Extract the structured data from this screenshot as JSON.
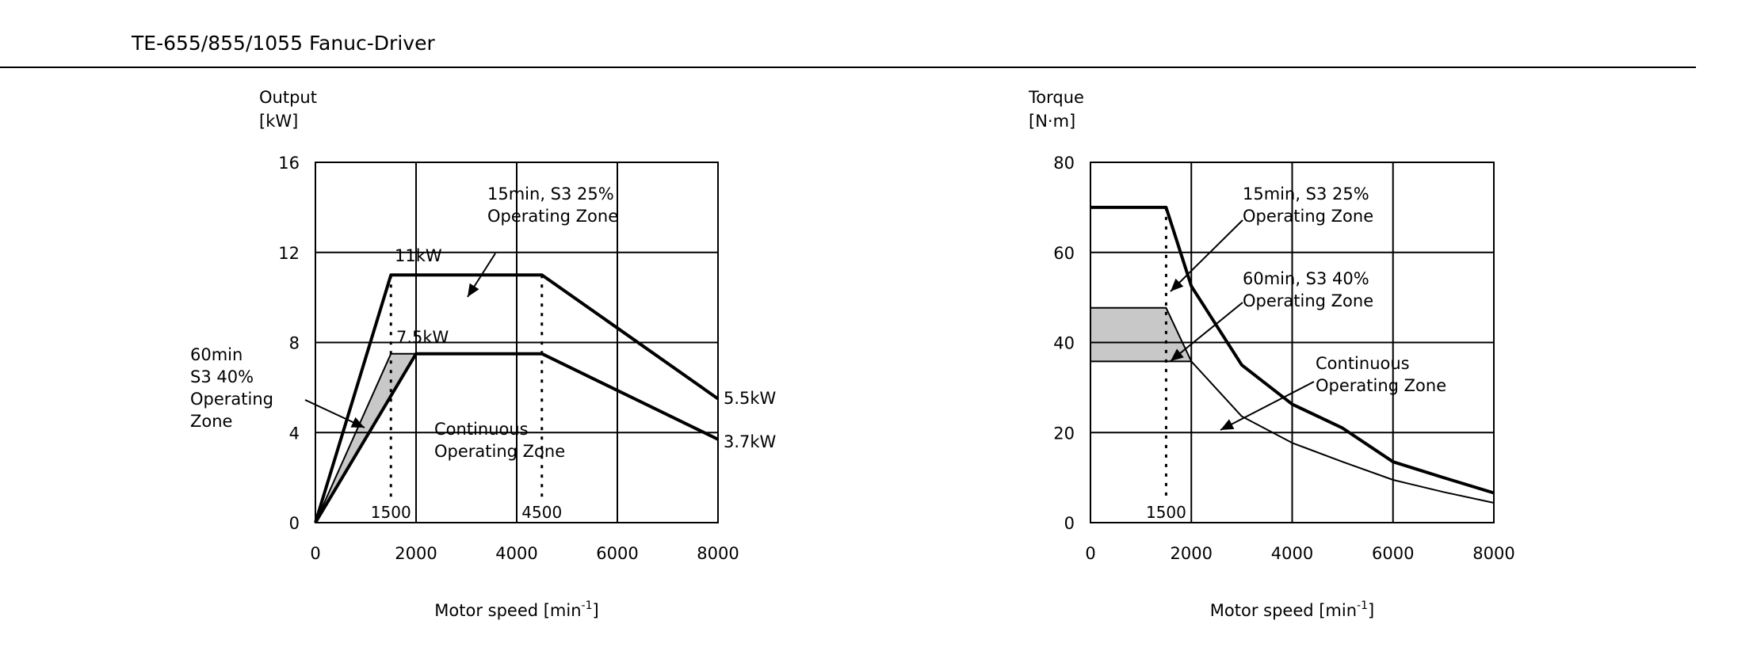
{
  "header": {
    "title": "TE-655/855/1055 Fanuc-Driver"
  },
  "colors": {
    "line": "#000000",
    "grid": "#000000",
    "shade": "#c8c8c8",
    "background": "#ffffff"
  },
  "chart_data": [
    {
      "type": "line",
      "ylabel_lines": [
        "Output",
        "[kW]"
      ],
      "xlabel": "Motor speed  [min",
      "xlabel_sup": "-1",
      "xlabel_close": "]",
      "xlim": [
        0,
        8000
      ],
      "ylim": [
        0,
        16
      ],
      "x_ticks": [
        0,
        2000,
        4000,
        6000,
        8000
      ],
      "x_tick_labels": [
        "0",
        "2000",
        "4000",
        "6000",
        "8000"
      ],
      "y_ticks": [
        0,
        4,
        8,
        12,
        16
      ],
      "y_tick_labels": [
        "0",
        "4",
        "8",
        "12",
        "16"
      ],
      "grid": true,
      "series": [
        {
          "name": "15min, S3 25% Operating Zone",
          "x": [
            0,
            1500,
            4500,
            8000
          ],
          "y": [
            0,
            11,
            11,
            5.5
          ]
        },
        {
          "name": "60min S3 40% Operating Zone",
          "x": [
            0,
            1500,
            2000
          ],
          "y": [
            0,
            7.5,
            7.5
          ]
        },
        {
          "name": "Continuous Operating Zone",
          "x": [
            0,
            2000,
            4500,
            8000
          ],
          "y": [
            0,
            7.5,
            7.5,
            3.7
          ]
        }
      ],
      "shaded_region": {
        "x": [
          0,
          1500,
          2000
        ],
        "y": [
          0,
          7.5,
          7.5
        ]
      },
      "dashed_markers": [
        {
          "x": 1500,
          "y_top": 11,
          "label": "1500"
        },
        {
          "x": 4500,
          "y_top": 11,
          "label": "4500"
        }
      ],
      "annotations": [
        {
          "lines": [
            "15min, S3 25%",
            "Operating Zone"
          ]
        },
        {
          "lines": [
            "60min",
            "S3 40%",
            "Operating",
            "Zone"
          ]
        },
        {
          "lines": [
            "Continuous",
            "Operating Zone"
          ]
        },
        {
          "lines": [
            "11kW"
          ]
        },
        {
          "lines": [
            "7.5kW"
          ]
        },
        {
          "lines": [
            "5.5kW"
          ]
        },
        {
          "lines": [
            "3.7kW"
          ]
        }
      ]
    },
    {
      "type": "line",
      "ylabel_lines": [
        "Torque",
        "[N·m]"
      ],
      "xlabel": "Motor speed  [min",
      "xlabel_sup": "-1",
      "xlabel_close": "]",
      "xlim": [
        0,
        8000
      ],
      "ylim": [
        0,
        80
      ],
      "x_ticks": [
        0,
        2000,
        4000,
        6000,
        8000
      ],
      "x_tick_labels": [
        "0",
        "2000",
        "4000",
        "6000",
        "8000"
      ],
      "y_ticks": [
        0,
        20,
        40,
        60,
        80
      ],
      "y_tick_labels": [
        "0",
        "20",
        "40",
        "60",
        "80"
      ],
      "grid": true,
      "series": [
        {
          "name": "15min, S3 25% Operating Zone",
          "x": [
            0,
            1500,
            2000,
            3000,
            4000,
            5000,
            6000,
            7000,
            8000
          ],
          "y": [
            70,
            70,
            52.5,
            35,
            26.3,
            21,
            13.5,
            10,
            6.6
          ]
        },
        {
          "name": "60min, S3 40% Operating Zone",
          "x": [
            0,
            1500,
            2000
          ],
          "y": [
            47.7,
            47.7,
            35.8
          ]
        },
        {
          "name": "Continuous Operating Zone",
          "x": [
            0,
            1500,
            2000,
            3000,
            4000,
            5000,
            6000,
            7000,
            8000
          ],
          "y": [
            35.8,
            35.8,
            35.8,
            23.6,
            17.7,
            13.5,
            9.5,
            6.8,
            4.4
          ]
        }
      ],
      "shaded_region": {
        "x": [
          0,
          1500,
          2000,
          0
        ],
        "y": [
          47.7,
          47.7,
          35.8,
          35.8
        ]
      },
      "dashed_markers": [
        {
          "x": 1500,
          "y_top": 70,
          "label": "1500"
        }
      ],
      "annotations": [
        {
          "lines": [
            "15min, S3 25%",
            "Operating Zone"
          ]
        },
        {
          "lines": [
            "60min, S3 40%",
            "Operating Zone"
          ]
        },
        {
          "lines": [
            "Continuous",
            "Operating Zone"
          ]
        }
      ]
    }
  ]
}
